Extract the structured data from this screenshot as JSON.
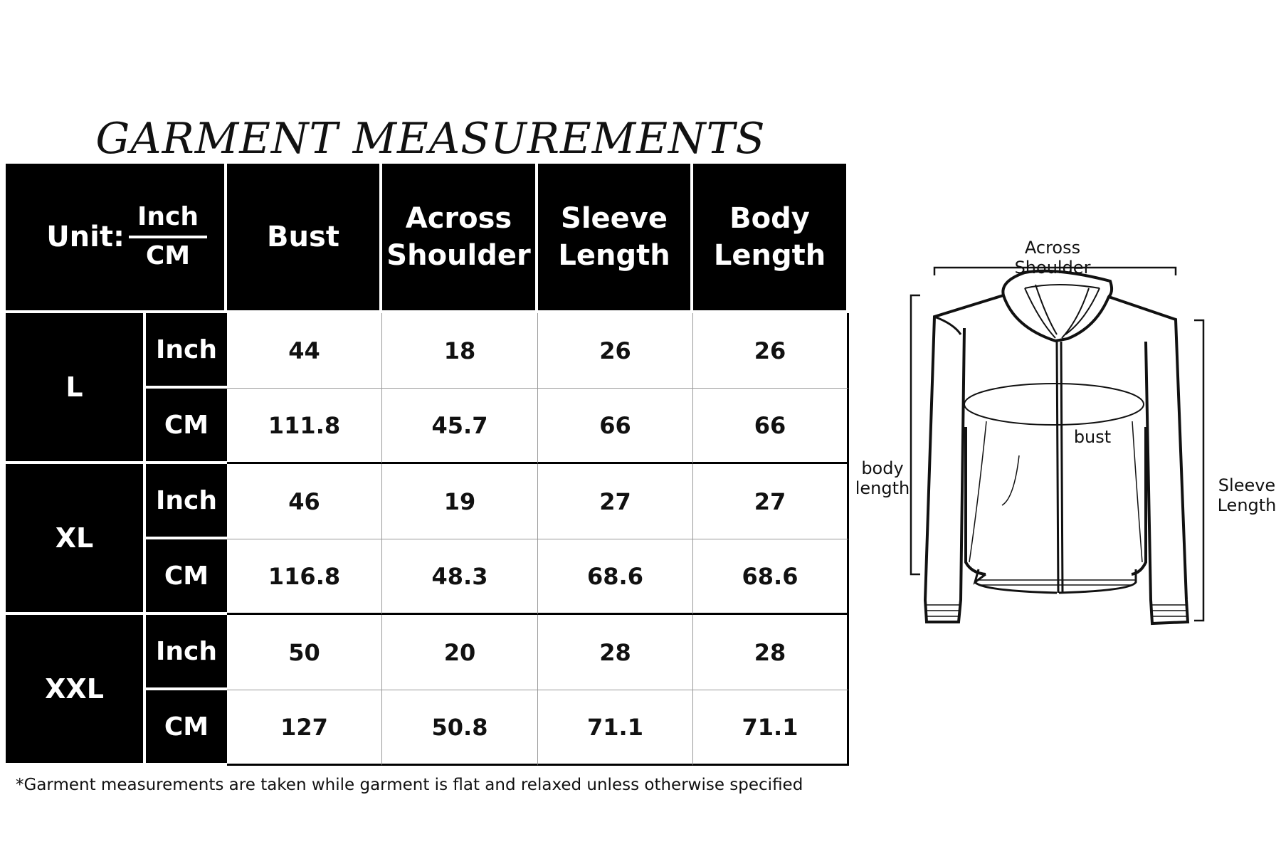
{
  "title": "GARMENT MEASUREMENTS",
  "table": {
    "unit_label": "Unit:",
    "unit_top": "Inch",
    "unit_bottom": "CM",
    "headers": [
      "Bust",
      "Across Shoulder",
      "Sleeve Length",
      "Body Length"
    ],
    "rows": [
      {
        "size": "L",
        "units": [
          {
            "unit": "Inch",
            "values": [
              "44",
              "18",
              "26",
              "26"
            ]
          },
          {
            "unit": "CM",
            "values": [
              "111.8",
              "45.7",
              "66",
              "66"
            ]
          }
        ]
      },
      {
        "size": "XL",
        "units": [
          {
            "unit": "Inch",
            "values": [
              "46",
              "19",
              "27",
              "27"
            ]
          },
          {
            "unit": "CM",
            "values": [
              "116.8",
              "48.3",
              "68.6",
              "68.6"
            ]
          }
        ]
      },
      {
        "size": "XXL",
        "units": [
          {
            "unit": "Inch",
            "values": [
              "50",
              "20",
              "28",
              "28"
            ]
          },
          {
            "unit": "CM",
            "values": [
              "127",
              "50.8",
              "71.1",
              "71.1"
            ]
          }
        ]
      }
    ]
  },
  "footnote": "*Garment measurements are taken while garment is flat and relaxed unless otherwise specified",
  "diagram": {
    "across_shoulder": [
      "Across",
      "Shoulder"
    ],
    "bust": "bust",
    "body_length": [
      "body",
      "length"
    ],
    "sleeve_length": [
      "Sleeve",
      "Length"
    ]
  }
}
